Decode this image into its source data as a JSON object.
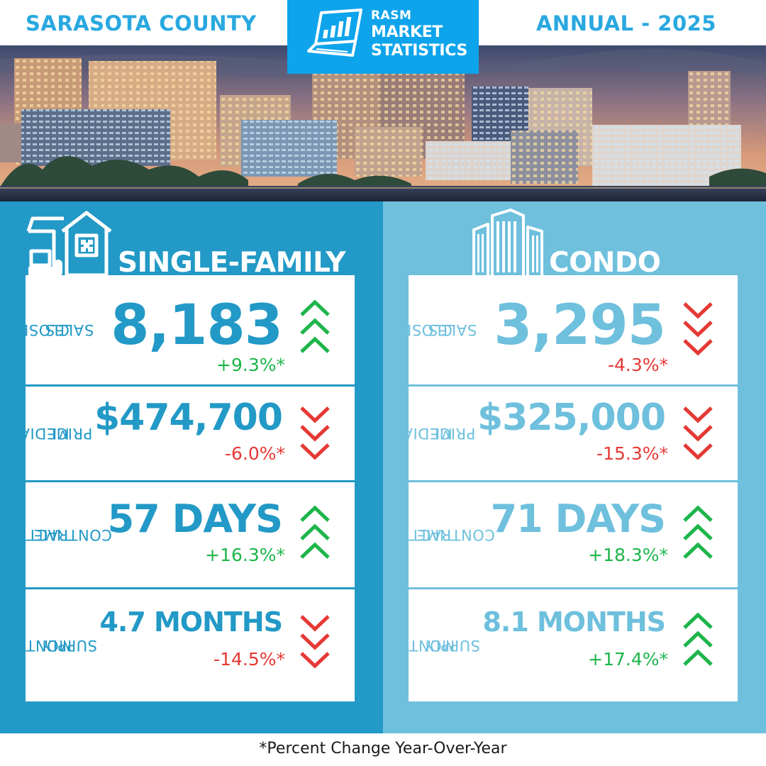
{
  "header": {
    "county": "SARASOTA COUNTY",
    "period": "ANNUAL - 2025",
    "logo": {
      "line1": "RASM",
      "line2": "MARKET",
      "line3": "STATISTICS"
    }
  },
  "colors": {
    "brand_blue": "#0ea4ec",
    "single_family": "#2299c6",
    "condo": "#6ec0dd",
    "increase": "#1db54a",
    "decrease": "#e53935"
  },
  "single_family": {
    "title": "SINGLE-FAMILY",
    "icon": "house-icon",
    "metrics": [
      {
        "label_line1": "CLOSED",
        "label_line2": "SALES",
        "value": "8,183",
        "change": "+9.3%*",
        "direction": "up"
      },
      {
        "label_line1": "MEDIAN",
        "label_line2": "PRICE",
        "value": "$474,700",
        "change": "-6.0%*",
        "direction": "down"
      },
      {
        "label_line1": "TIME TO",
        "label_line2": "CONTRACT",
        "value": "57 DAYS",
        "change": "+16.3%*",
        "direction": "up"
      },
      {
        "label_line1": "MONTHS",
        "label_line2": "SUPPLY",
        "value": "4.7 MONTHS",
        "change": "-14.5%*",
        "direction": "down"
      }
    ]
  },
  "condo": {
    "title": "CONDO",
    "icon": "condo-buildings-icon",
    "metrics": [
      {
        "label_line1": "CLOSED",
        "label_line2": "SALES",
        "value": "3,295",
        "change": "-4.3%*",
        "direction": "down"
      },
      {
        "label_line1": "MEDIAN",
        "label_line2": "PRICE",
        "value": "$325,000",
        "change": "-15.3%*",
        "direction": "down"
      },
      {
        "label_line1": "TIME TO",
        "label_line2": "CONTRACT",
        "value": "71 DAYS",
        "change": "+18.3%*",
        "direction": "up"
      },
      {
        "label_line1": "MONTHS",
        "label_line2": "SUPPLY",
        "value": "8.1 MONTHS",
        "change": "+17.4%*",
        "direction": "up"
      }
    ]
  },
  "footnote": "*Percent Change Year-Over-Year"
}
